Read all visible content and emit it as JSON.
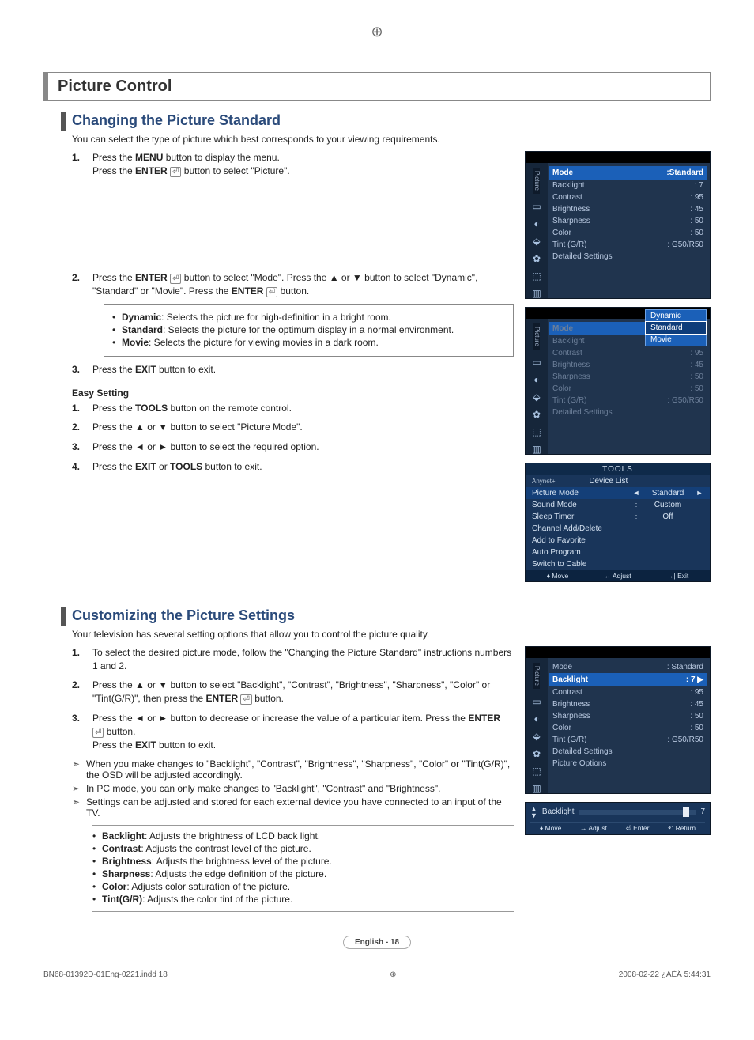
{
  "pageTitle": "Picture Control",
  "section1": {
    "heading": "Changing the Picture Standard",
    "intro": "You can select the type of picture which best corresponds to your viewing requirements.",
    "steps": [
      {
        "num": "1.",
        "html": "Press the <b>MENU</b> button to display the menu.<br>Press the <b>ENTER</b> <span class='enter-icon'>⏎</span> button to select \"Picture\"."
      },
      {
        "num": "2.",
        "html": "Press the <b>ENTER</b> <span class='enter-icon'>⏎</span> button to select \"Mode\". Press the ▲ or ▼ button to select \"Dynamic\", \"Standard\" or \"Movie\". Press the <b>ENTER</b> <span class='enter-icon'>⏎</span> button."
      },
      {
        "num": "3.",
        "html": "Press the <b>EXIT</b> button to exit."
      }
    ],
    "modeDefs": [
      {
        "term": "Dynamic",
        "desc": ": Selects the picture for high-definition in a bright room."
      },
      {
        "term": "Standard",
        "desc": ": Selects the picture for the optimum display in a normal environment."
      },
      {
        "term": "Movie",
        "desc": ": Selects the picture for viewing movies in a dark room."
      }
    ],
    "easyHeading": "Easy Setting",
    "easySteps": [
      {
        "num": "1.",
        "html": "Press the <b>TOOLS</b> button on the remote control."
      },
      {
        "num": "2.",
        "html": "Press the ▲ or ▼ button to select \"Picture Mode\"."
      },
      {
        "num": "3.",
        "html": "Press the ◄ or ► button to select the required option."
      },
      {
        "num": "4.",
        "html": "Press the <b>EXIT</b> or <b>TOOLS</b> button to exit."
      }
    ]
  },
  "section2": {
    "heading": "Customizing the Picture Settings",
    "intro": "Your television has several setting options that allow you to control the picture quality.",
    "steps": [
      {
        "num": "1.",
        "html": "To select the desired picture mode, follow the \"Changing the Picture Standard\" instructions numbers 1 and 2."
      },
      {
        "num": "2.",
        "html": "Press the ▲ or ▼ button to select \"Backlight\", \"Contrast\", \"Brightness\", \"Sharpness\", \"Color\" or \"Tint(G/R)\", then press the <b>ENTER</b> <span class='enter-icon'>⏎</span> button."
      },
      {
        "num": "3.",
        "html": "Press the ◄ or ► button to decrease or increase the value of a particular item. Press the <b>ENTER</b> <span class='enter-icon'>⏎</span> button.<br>Press the <b>EXIT</b> button to exit."
      }
    ],
    "notes": [
      "When you make changes to \"Backlight\", \"Contrast\", \"Brightness\", \"Sharpness\", \"Color\" or \"Tint(G/R)\", the OSD will be adjusted accordingly.",
      "In PC mode, you can only make changes to \"Backlight\", \"Contrast\" and \"Brightness\".",
      "Settings can be adjusted and stored for each external device you have connected to an input of the TV."
    ],
    "defs": [
      {
        "term": "Backlight",
        "desc": ": Adjusts the brightness of LCD back light."
      },
      {
        "term": "Contrast",
        "desc": ": Adjusts the contrast level of the picture."
      },
      {
        "term": "Brightness",
        "desc": ": Adjusts the brightness level of the picture."
      },
      {
        "term": "Sharpness",
        "desc": ": Adjusts the edge definition of the picture."
      },
      {
        "term": "Color",
        "desc": ": Adjusts color saturation of the picture."
      },
      {
        "term": "Tint(G/R)",
        "desc": ": Adjusts the color tint of the picture."
      }
    ]
  },
  "osd1": {
    "tabLabel": "Picture",
    "rows": [
      {
        "k": "Mode",
        "v": ":Standard",
        "hl": true
      },
      {
        "k": "Backlight",
        "v": ": 7"
      },
      {
        "k": "Contrast",
        "v": ": 95"
      },
      {
        "k": "Brightness",
        "v": ": 45"
      },
      {
        "k": "Sharpness",
        "v": ": 50"
      },
      {
        "k": "Color",
        "v": ": 50"
      },
      {
        "k": "Tint (G/R)",
        "v": ": G50/R50"
      },
      {
        "k": "Detailed Settings",
        "v": ""
      }
    ]
  },
  "osd2": {
    "tabLabel": "Picture",
    "rows": [
      {
        "k": "Mode",
        "v": "",
        "hl": true
      },
      {
        "k": "Backlight",
        "v": ": 7"
      },
      {
        "k": "Contrast",
        "v": ": 95"
      },
      {
        "k": "Brightness",
        "v": ": 45"
      },
      {
        "k": "Sharpness",
        "v": ": 50"
      },
      {
        "k": "Color",
        "v": ": 50"
      },
      {
        "k": "Tint (G/R)",
        "v": ": G50/R50"
      },
      {
        "k": "Detailed Settings",
        "v": ""
      }
    ],
    "popup": [
      "Dynamic",
      "Standard",
      "Movie"
    ],
    "popupSel": 1
  },
  "tools": {
    "title": "TOOLS",
    "rows": [
      {
        "k": "Device List",
        "type": "device",
        "icon": "Anynet+"
      },
      {
        "k": "Picture Mode",
        "v": "Standard",
        "hl": true,
        "arrows": true
      },
      {
        "k": "Sound Mode",
        "v": "Custom",
        "sep": ":"
      },
      {
        "k": "Sleep Timer",
        "v": "Off",
        "sep": ":"
      },
      {
        "k": "Channel Add/Delete"
      },
      {
        "k": "Add to Favorite"
      },
      {
        "k": "Auto Program"
      },
      {
        "k": "Switch to Cable"
      }
    ],
    "footer": [
      "♦ Move",
      "↔ Adjust",
      "→| Exit"
    ]
  },
  "osd3": {
    "tabLabel": "Picture",
    "rows": [
      {
        "k": "Mode",
        "v": ": Standard"
      },
      {
        "k": "Backlight",
        "v": ": 7",
        "hl": true,
        "arrow": true
      },
      {
        "k": "Contrast",
        "v": ": 95"
      },
      {
        "k": "Brightness",
        "v": ": 45"
      },
      {
        "k": "Sharpness",
        "v": ": 50"
      },
      {
        "k": "Color",
        "v": ": 50"
      },
      {
        "k": "Tint (G/R)",
        "v": ": G50/R50"
      },
      {
        "k": "Detailed Settings",
        "v": ""
      },
      {
        "k": "Picture Options",
        "v": ""
      }
    ]
  },
  "slider": {
    "label": "Backlight",
    "value": "7",
    "footer": [
      "♦ Move",
      "↔ Adjust",
      "⏎ Enter",
      "↶ Return"
    ]
  },
  "pageNum": "English - 18",
  "footer": {
    "left": "BN68-01392D-01Eng-0221.indd   18",
    "right": "2008-02-22   ¿ÀÈÄ 5:44:31"
  }
}
